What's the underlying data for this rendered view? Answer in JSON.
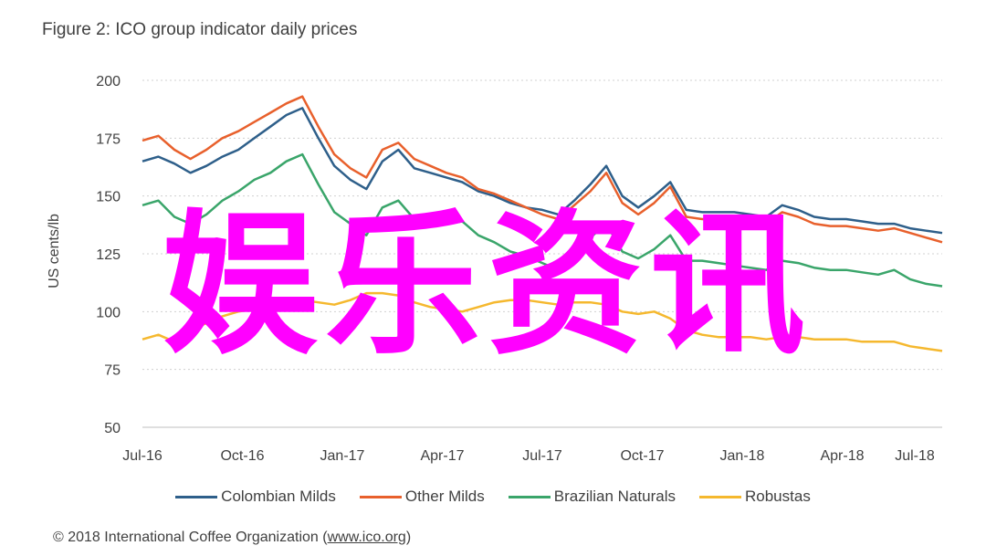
{
  "chart_data": {
    "type": "line",
    "title": "Figure 2: ICO group indicator daily prices",
    "ylabel": "US cents/lb",
    "xlabel": "",
    "ylim": [
      50,
      200
    ],
    "yticks": [
      "50",
      "75",
      "100",
      "125",
      "150",
      "175",
      "200"
    ],
    "xticks": [
      "Jul-16",
      "Oct-16",
      "Jan-17",
      "Apr-17",
      "Jul-17",
      "Oct-17",
      "Jan-18",
      "Apr-18",
      "Jul-18"
    ],
    "grid": "horizontal dotted",
    "legend_position": "bottom",
    "x": [
      0,
      0.5,
      1,
      1.5,
      2,
      2.5,
      3,
      3.5,
      4,
      4.5,
      5,
      5.5,
      6,
      6.5,
      7,
      7.5,
      8,
      8.5,
      9,
      9.5,
      10,
      10.5,
      11,
      11.5,
      12,
      12.5,
      13,
      13.5,
      14,
      14.5,
      15,
      15.5,
      16,
      16.5,
      17,
      17.5,
      18,
      18.5,
      19,
      19.5,
      20,
      20.5,
      21,
      21.5,
      22,
      22.5,
      23,
      23.5,
      24,
      24.5,
      25
    ],
    "series": [
      {
        "name": "Colombian Milds",
        "color": "#2e5f8a",
        "values": [
          165,
          167,
          164,
          160,
          163,
          167,
          170,
          175,
          180,
          185,
          188,
          175,
          163,
          157,
          153,
          165,
          170,
          162,
          160,
          158,
          156,
          152,
          150,
          147,
          145,
          144,
          142,
          148,
          155,
          163,
          150,
          145,
          150,
          156,
          144,
          143,
          143,
          143,
          142,
          141,
          146,
          144,
          141,
          140,
          140,
          139,
          138,
          138,
          136,
          135,
          134
        ]
      },
      {
        "name": "Other Milds",
        "color": "#e8602c",
        "values": [
          174,
          176,
          170,
          166,
          170,
          175,
          178,
          182,
          186,
          190,
          193,
          180,
          168,
          162,
          158,
          170,
          173,
          166,
          163,
          160,
          158,
          153,
          151,
          148,
          145,
          142,
          140,
          146,
          152,
          160,
          147,
          142,
          147,
          154,
          141,
          140,
          140,
          140,
          139,
          138,
          143,
          141,
          138,
          137,
          137,
          136,
          135,
          136,
          134,
          132,
          130
        ]
      },
      {
        "name": "Brazilian Naturals",
        "color": "#3aa56a",
        "values": [
          146,
          148,
          141,
          138,
          142,
          148,
          152,
          157,
          160,
          165,
          168,
          155,
          143,
          138,
          133,
          145,
          148,
          140,
          138,
          138,
          139,
          133,
          130,
          126,
          124,
          121,
          118,
          125,
          132,
          138,
          126,
          123,
          127,
          133,
          122,
          122,
          121,
          120,
          119,
          118,
          122,
          121,
          119,
          118,
          118,
          117,
          116,
          118,
          114,
          112,
          111
        ]
      },
      {
        "name": "Robustas",
        "color": "#f5b82e",
        "values": [
          88,
          90,
          87,
          92,
          95,
          98,
          100,
          101,
          102,
          103,
          105,
          104,
          103,
          105,
          108,
          108,
          107,
          104,
          102,
          101,
          100,
          102,
          104,
          105,
          105,
          104,
          103,
          104,
          104,
          103,
          100,
          99,
          100,
          97,
          92,
          90,
          89,
          89,
          89,
          88,
          89,
          89,
          88,
          88,
          88,
          87,
          87,
          87,
          85,
          84,
          83
        ]
      }
    ]
  },
  "footer": {
    "copyright": "© 2018 International Coffee Organization (",
    "link": "www.ico.org",
    "close": ")"
  },
  "overlay": {
    "text": "娱乐资讯",
    "color": "#ff00ff"
  }
}
